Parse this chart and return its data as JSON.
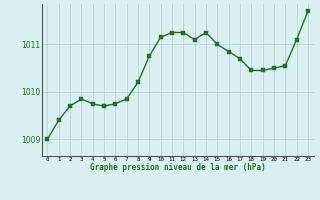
{
  "x": [
    0,
    1,
    2,
    3,
    4,
    5,
    6,
    7,
    8,
    9,
    10,
    11,
    12,
    13,
    14,
    15,
    16,
    17,
    18,
    19,
    20,
    21,
    22,
    23
  ],
  "y": [
    1009.0,
    1009.4,
    1009.7,
    1009.85,
    1009.75,
    1009.7,
    1009.75,
    1009.85,
    1010.2,
    1010.75,
    1011.15,
    1011.25,
    1011.25,
    1011.1,
    1011.25,
    1011.0,
    1010.85,
    1010.7,
    1010.45,
    1010.45,
    1010.5,
    1010.55,
    1011.1,
    1011.7
  ],
  "line_color": "#2d6a2d",
  "marker_color": "#2d6a2d",
  "bg_color": "#d8f0f0",
  "grid_color_major": "#b0d0d0",
  "grid_color_minor": "#c8e4e4",
  "ylabel_ticks": [
    1009,
    1010,
    1011
  ],
  "xlabel_ticks": [
    0,
    1,
    2,
    3,
    4,
    5,
    6,
    7,
    8,
    9,
    10,
    11,
    12,
    13,
    14,
    15,
    16,
    17,
    18,
    19,
    20,
    21,
    22,
    23
  ],
  "xlabel": "Graphe pression niveau de la mer (hPa)",
  "ylim": [
    1008.65,
    1011.85
  ],
  "xlim": [
    -0.5,
    23.5
  ]
}
